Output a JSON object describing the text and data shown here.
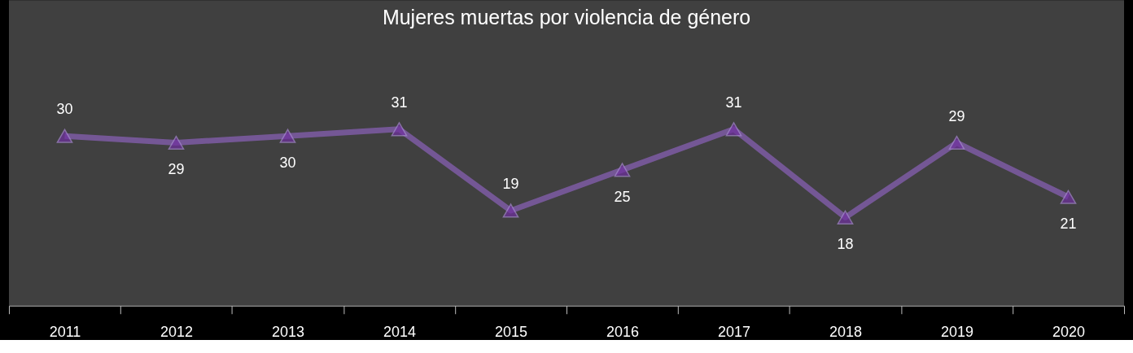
{
  "chart_data": {
    "type": "line",
    "title": "Mujeres muertas por violencia de género",
    "categories": [
      "2011",
      "2012",
      "2013",
      "2014",
      "2015",
      "2016",
      "2017",
      "2018",
      "2019",
      "2020"
    ],
    "series": [
      {
        "color": "#7a5a9e",
        "values": [
          30,
          29,
          30,
          31,
          19,
          25,
          31,
          18,
          29,
          21
        ]
      }
    ],
    "ylim": [
      5,
      50
    ],
    "data_labels": true,
    "marker": "triangle",
    "grid": false
  }
}
